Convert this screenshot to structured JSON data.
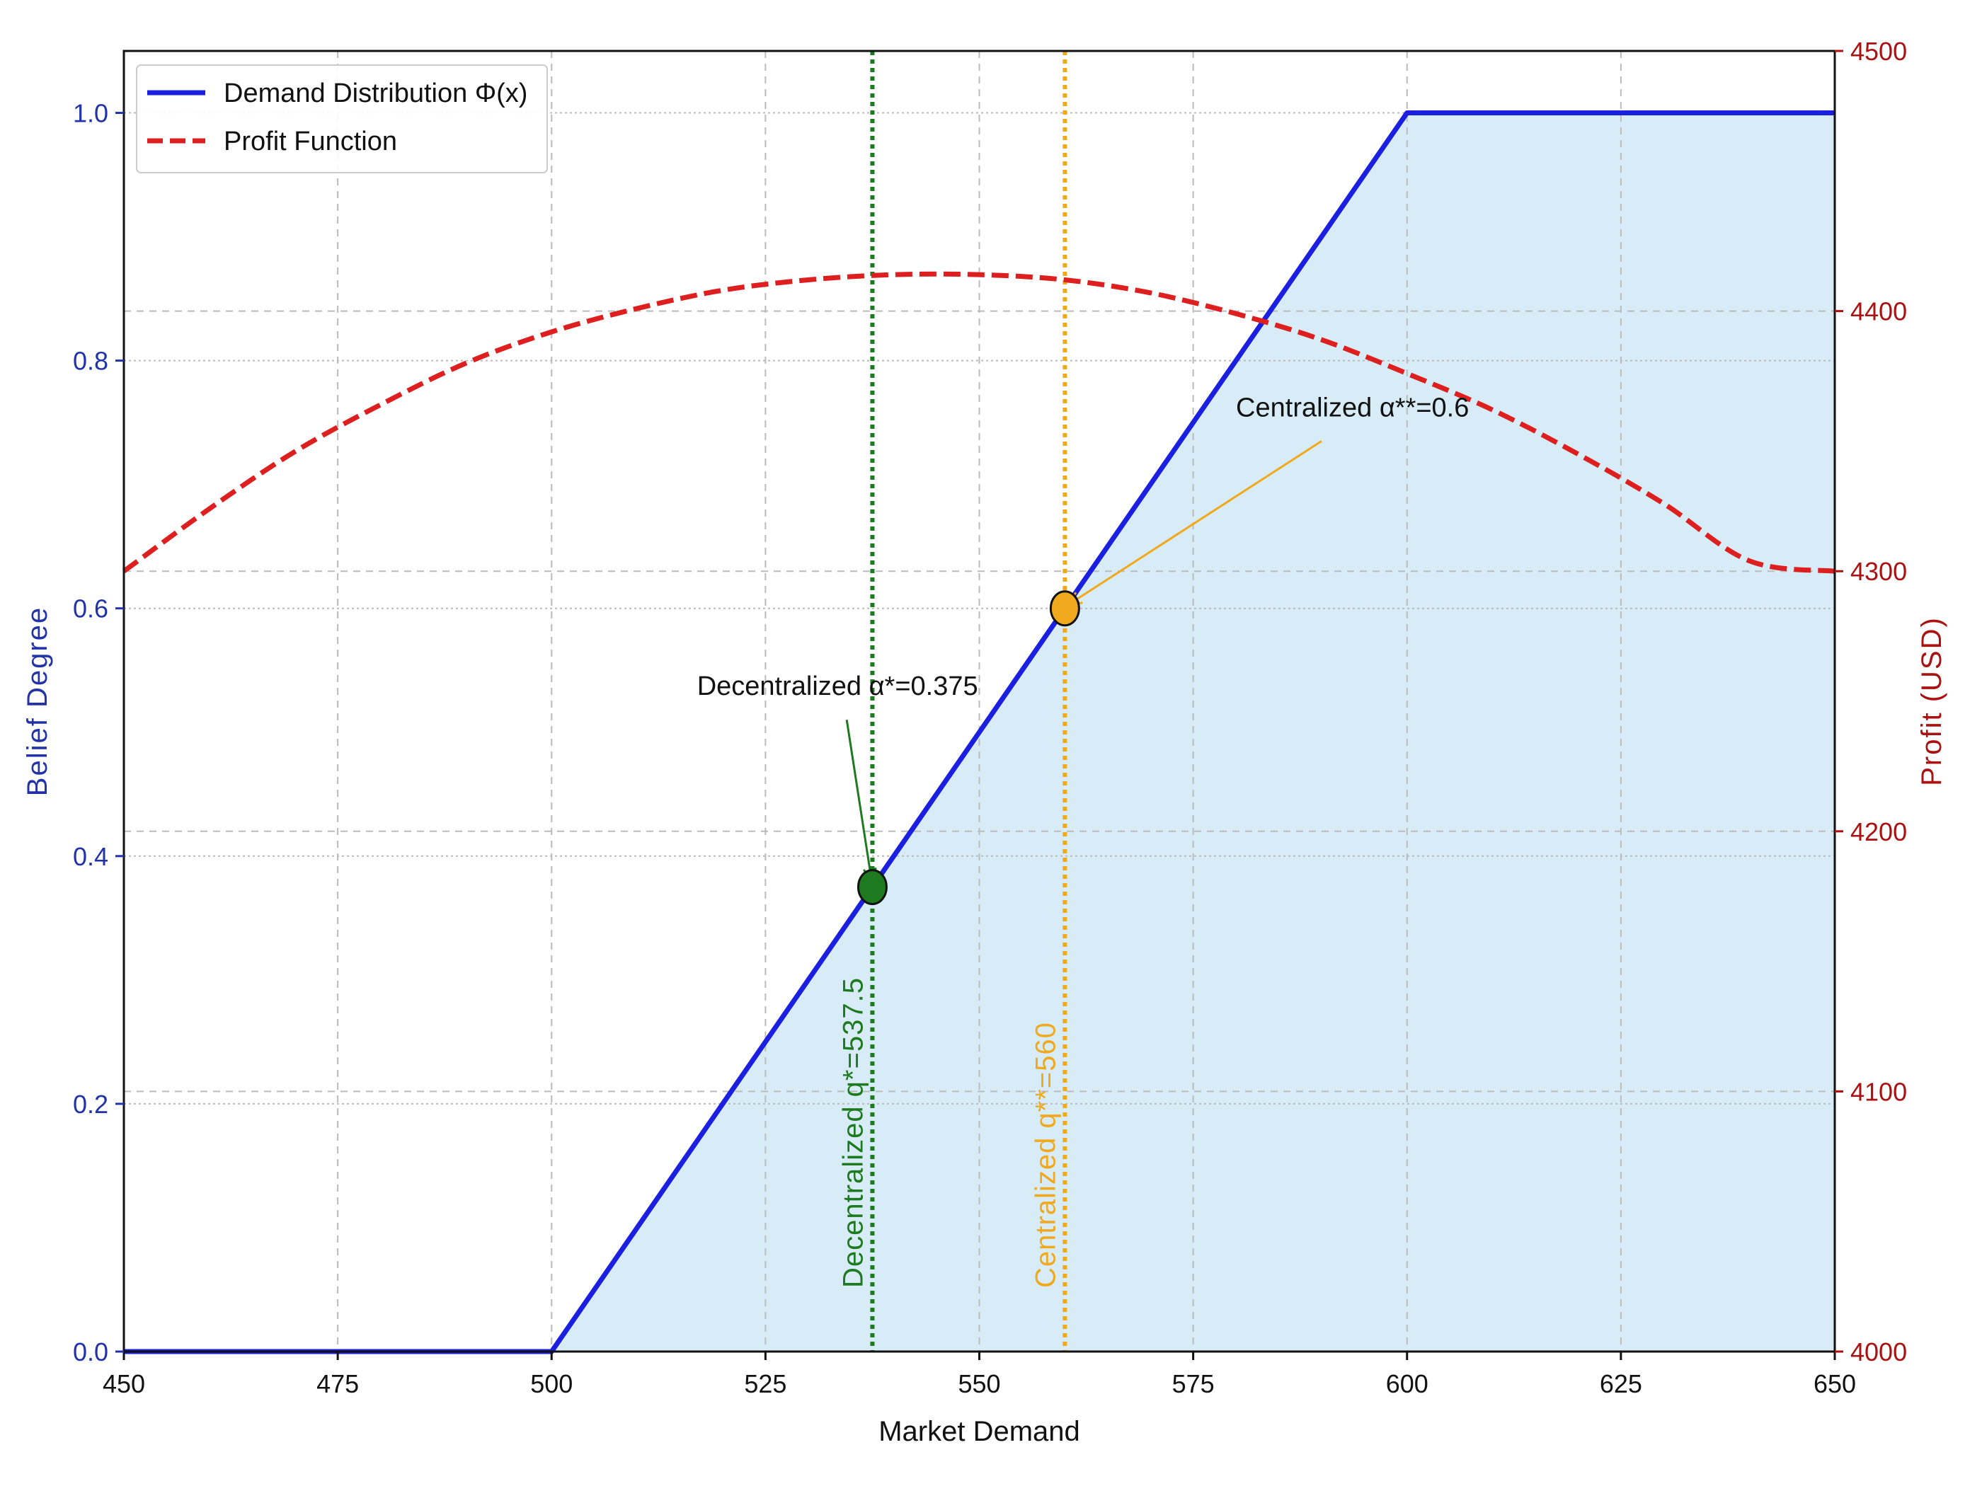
{
  "colors": {
    "demand": "#1a1fe0",
    "profit": "#dd1f1f",
    "fill": "#d6ebf7",
    "decentralized": "#1e7a1e",
    "centralized": "#f0a81c",
    "left_axis": "#2233aa",
    "right_axis": "#aa1111",
    "grid": "#bbbbbb"
  },
  "chart_data": {
    "type": "line",
    "title": "",
    "xlabel": "Market Demand",
    "ylabel": "Belief Degree",
    "y2label": "Profit (USD)",
    "xlim": [
      450,
      650
    ],
    "ylim": [
      0,
      1.05
    ],
    "y2lim": [
      4000,
      4500
    ],
    "xticks": [
      450,
      475,
      500,
      525,
      550,
      575,
      600,
      625,
      650
    ],
    "yticks": [
      0.0,
      0.2,
      0.4,
      0.6,
      0.8,
      1.0
    ],
    "yticklabels": [
      "0.0",
      "0.2",
      "0.4",
      "0.6",
      "0.8",
      "1.0"
    ],
    "y2ticks": [
      4000,
      4100,
      4200,
      4300,
      4400,
      4500
    ],
    "grid": true,
    "legend_position": "top-left",
    "series": [
      {
        "name": "Demand Distribution Φ(x)",
        "axis": "left",
        "style": "solid",
        "x": [
          450,
          500,
          600,
          650
        ],
        "y": [
          0,
          0,
          1,
          1
        ]
      },
      {
        "name": "Profit Function",
        "axis": "right",
        "style": "dashed",
        "x": [
          450,
          460,
          470,
          480,
          490,
          500,
          510,
          520,
          530,
          540,
          550,
          560,
          570,
          580,
          590,
          600,
          610,
          620,
          630,
          640,
          650
        ],
        "y": [
          4300,
          4324,
          4346,
          4364,
          4380,
          4392,
          4401,
          4408,
          4412,
          4414,
          4414,
          4412,
          4407,
          4399,
          4389,
          4376,
          4362,
          4345,
          4326,
          4304,
          4300
        ]
      }
    ],
    "markers": [
      {
        "name": "Decentralized",
        "x": 537.5,
        "y": 0.375,
        "annotation": "Decentralized α*=0.375",
        "vline_label": "Decentralized q*=537.5",
        "text_x": 517,
        "text_y": 0.53,
        "arrow_start": [
          534.5,
          0.51
        ]
      },
      {
        "name": "Centralized",
        "x": 560,
        "y": 0.6,
        "annotation": "Centralized α**=0.6",
        "vline_label": "Centralized q**=560",
        "text_x": 580,
        "text_y": 0.755,
        "arrow_start": [
          590,
          0.735
        ]
      }
    ]
  }
}
